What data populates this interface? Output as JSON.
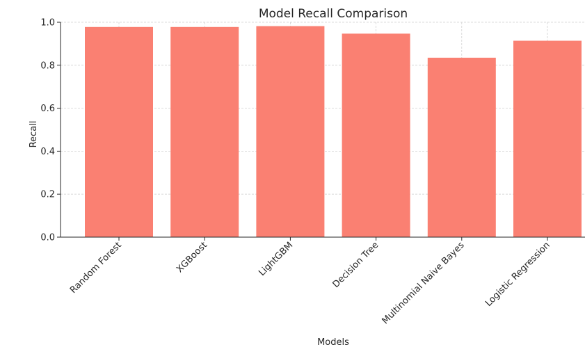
{
  "chart_data": {
    "type": "bar",
    "title": "Model Recall Comparison",
    "xlabel": "Models",
    "ylabel": "Recall",
    "categories": [
      "Random Forest",
      "XGBoost",
      "LightGBM",
      "Decision Tree",
      "Multinomial Naive Bayes",
      "Logistic Regression"
    ],
    "values": [
      0.978,
      0.978,
      0.982,
      0.947,
      0.835,
      0.914
    ],
    "ylim": [
      0,
      1.0
    ],
    "yticks": [
      "0.0",
      "0.2",
      "0.4",
      "0.6",
      "0.8",
      "1.0"
    ],
    "grid": true,
    "bar_color": "#fa8072"
  }
}
